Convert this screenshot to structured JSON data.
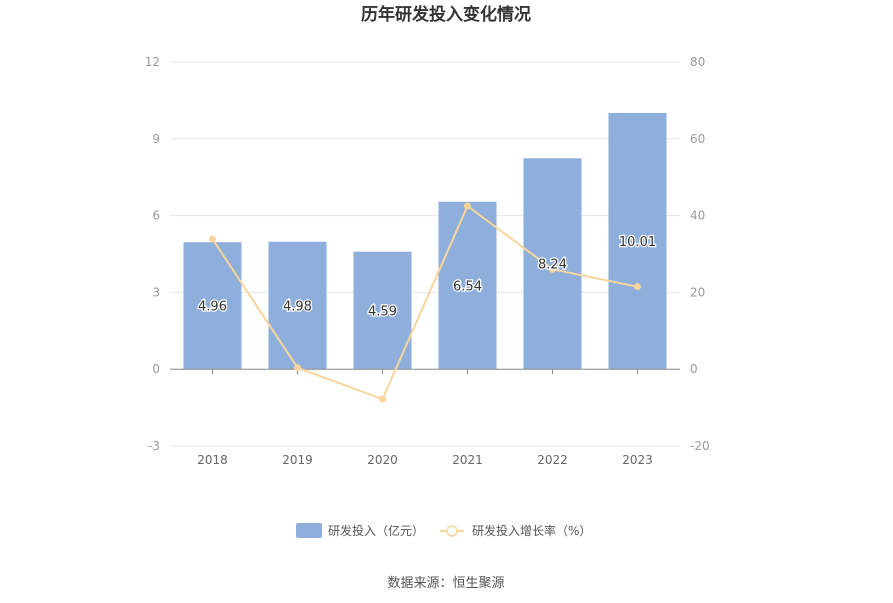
{
  "chart_data": {
    "type": "bar",
    "title": "历年研发投入变化情况",
    "categories": [
      "2018",
      "2019",
      "2020",
      "2021",
      "2022",
      "2023"
    ],
    "series": [
      {
        "name": "研发投入（亿元）",
        "type": "bar",
        "axis": "left",
        "values": [
          4.96,
          4.98,
          4.59,
          6.54,
          8.24,
          10.01
        ],
        "color": "#8eaedb",
        "data_labels": [
          "4.96",
          "4.98",
          "4.59",
          "6.54",
          "8.24",
          "10.01"
        ]
      },
      {
        "name": "研发投入增长率（%）",
        "type": "line",
        "axis": "right",
        "values": [
          33.9,
          0.4,
          -7.8,
          42.5,
          26.0,
          21.5
        ],
        "color": "#fad59b"
      }
    ],
    "y_left": {
      "min": -3,
      "max": 12,
      "ticks": [
        "12",
        "9",
        "6",
        "3",
        "0",
        "-3"
      ]
    },
    "y_right": {
      "min": -20,
      "max": 80,
      "ticks": [
        "80",
        "60",
        "40",
        "20",
        "0",
        "-20"
      ]
    },
    "grid": true,
    "legend": "bottom-center"
  },
  "footer": {
    "source": "数据来源：恒生聚源"
  }
}
